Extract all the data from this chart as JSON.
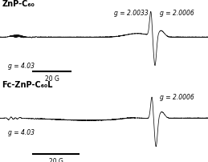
{
  "title_top": "ZnP-C₆₀",
  "title_bottom": "Fc-ZnP-C₆₀L",
  "g_label_403": "g = 4.03",
  "g_label_20033": "g = 2.0033",
  "g_label_20006_top": "g = 2.0006",
  "g_label_20006_bot": "g = 2.0006",
  "scale_bar_label": "20 G",
  "line_color": "#111111",
  "title_fontsize": 7.0,
  "label_fontsize": 5.5,
  "scale_fontsize": 5.5
}
